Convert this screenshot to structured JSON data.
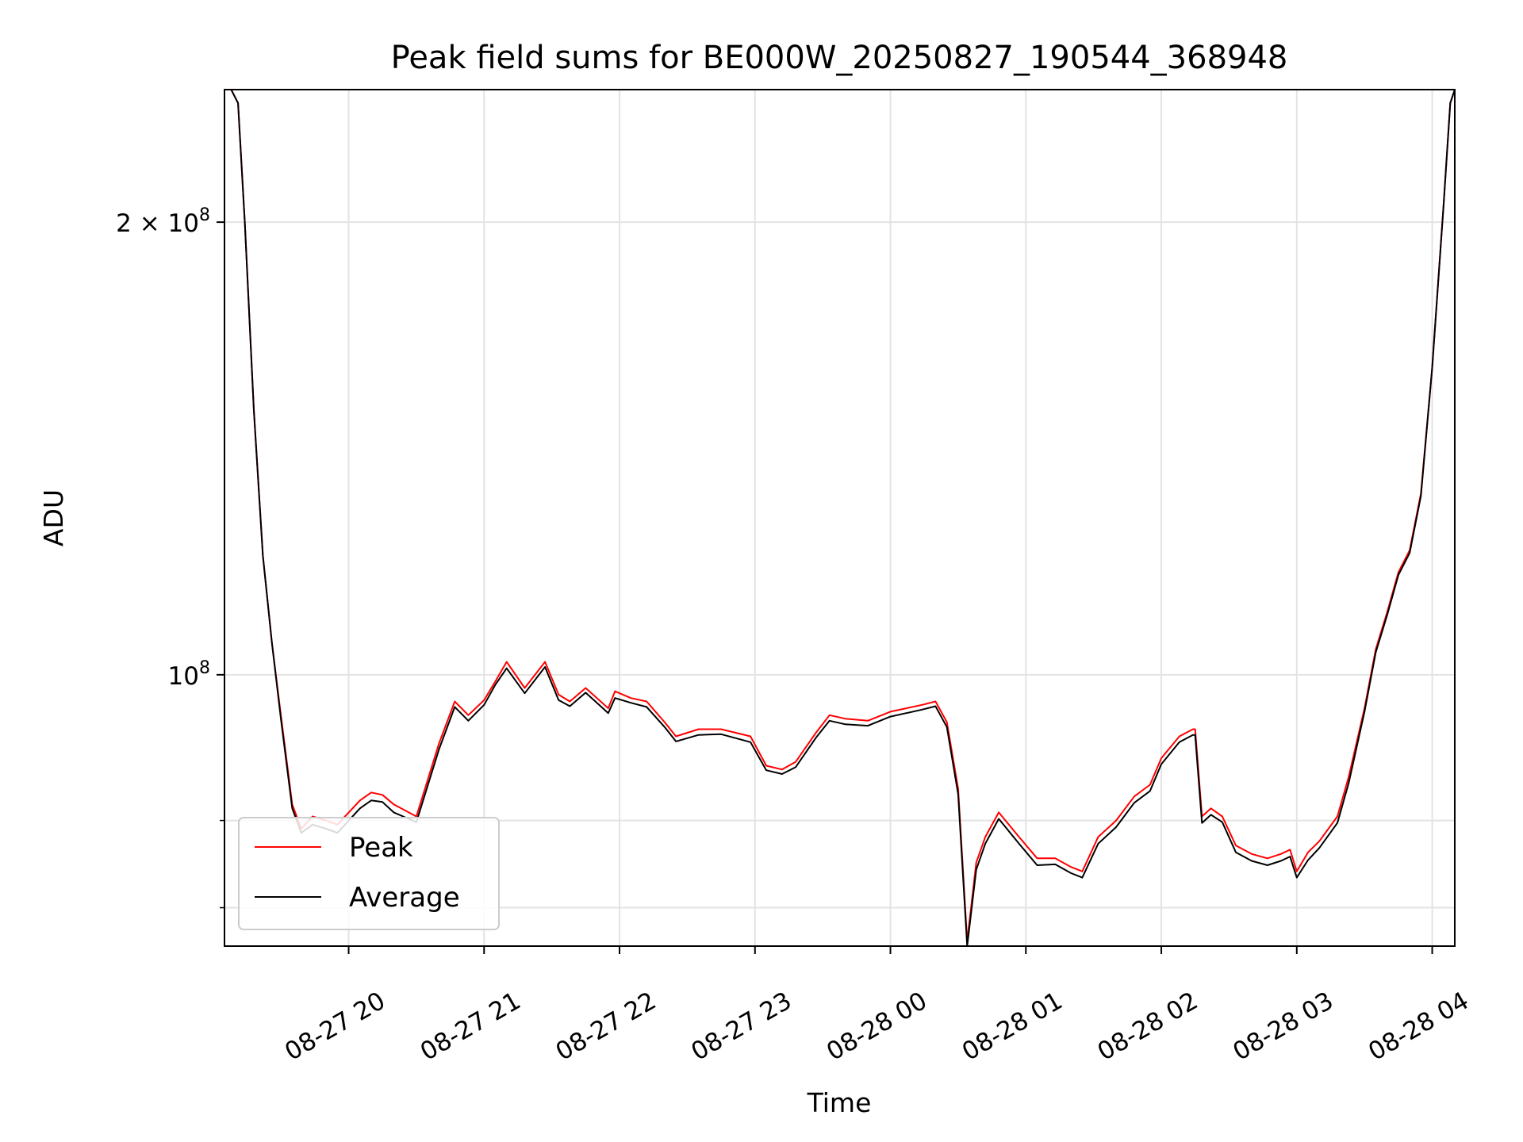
{
  "chart_data": {
    "type": "line",
    "title": "Peak field sums for BE000W_20250827_190544_368948",
    "xlabel": "Time",
    "ylabel": "ADU",
    "x_scale": "time",
    "y_scale": "log",
    "xlim": [
      "2025-08-27 19:05",
      "2025-08-28 04:10"
    ],
    "ylim": [
      66000000,
      245000000
    ],
    "x_ticks": [
      {
        "value": "2025-08-27 20:00",
        "label": "08-27 20"
      },
      {
        "value": "2025-08-27 21:00",
        "label": "08-27 21"
      },
      {
        "value": "2025-08-27 22:00",
        "label": "08-27 22"
      },
      {
        "value": "2025-08-27 23:00",
        "label": "08-27 23"
      },
      {
        "value": "2025-08-28 00:00",
        "label": "08-28 00"
      },
      {
        "value": "2025-08-28 01:00",
        "label": "08-28 01"
      },
      {
        "value": "2025-08-28 02:00",
        "label": "08-28 02"
      },
      {
        "value": "2025-08-28 03:00",
        "label": "08-28 03"
      },
      {
        "value": "2025-08-28 04:00",
        "label": "08-28 04"
      }
    ],
    "y_major_ticks": [
      {
        "value": 100000000,
        "base": "10",
        "exp": "8"
      },
      {
        "value": 200000000,
        "base": "2 × 10",
        "exp": "8"
      }
    ],
    "y_minor_ticks": [
      70000000,
      80000000
    ],
    "grid": true,
    "legend_position": "lower-left",
    "series": [
      {
        "name": "Peak",
        "color": "#ff0000",
        "x": [
          "2025-08-27 19:05",
          "2025-08-27 19:08",
          "2025-08-27 19:11",
          "2025-08-27 19:14",
          "2025-08-27 19:18",
          "2025-08-27 19:22",
          "2025-08-27 19:26",
          "2025-08-27 19:30",
          "2025-08-27 19:35",
          "2025-08-27 19:39",
          "2025-08-27 19:44",
          "2025-08-27 19:50",
          "2025-08-27 19:55",
          "2025-08-27 20:05",
          "2025-08-27 20:10",
          "2025-08-27 20:15",
          "2025-08-27 20:20",
          "2025-08-27 20:30",
          "2025-08-27 20:40",
          "2025-08-27 20:47",
          "2025-08-27 20:53",
          "2025-08-27 21:00",
          "2025-08-27 21:05",
          "2025-08-27 21:10",
          "2025-08-27 21:18",
          "2025-08-27 21:27",
          "2025-08-27 21:33",
          "2025-08-27 21:38",
          "2025-08-27 21:45",
          "2025-08-27 21:55",
          "2025-08-27 21:58",
          "2025-08-27 22:05",
          "2025-08-27 22:12",
          "2025-08-27 22:20",
          "2025-08-27 22:25",
          "2025-08-27 22:35",
          "2025-08-27 22:45",
          "2025-08-27 22:58",
          "2025-08-27 23:05",
          "2025-08-27 23:12",
          "2025-08-27 23:18",
          "2025-08-27 23:27",
          "2025-08-27 23:33",
          "2025-08-27 23:40",
          "2025-08-27 23:50",
          "2025-08-28 00:00",
          "2025-08-28 00:07",
          "2025-08-28 00:14",
          "2025-08-28 00:20",
          "2025-08-28 00:25",
          "2025-08-28 00:30",
          "2025-08-28 00:34",
          "2025-08-28 00:38",
          "2025-08-28 00:42",
          "2025-08-28 00:48",
          "2025-08-28 00:57",
          "2025-08-28 01:05",
          "2025-08-28 01:13",
          "2025-08-28 01:20",
          "2025-08-28 01:25",
          "2025-08-28 01:32",
          "2025-08-28 01:40",
          "2025-08-28 01:48",
          "2025-08-28 01:55",
          "2025-08-28 02:00",
          "2025-08-28 02:08",
          "2025-08-28 02:14",
          "2025-08-28 02:15",
          "2025-08-28 02:18",
          "2025-08-28 02:22",
          "2025-08-28 02:27",
          "2025-08-28 02:33",
          "2025-08-28 02:40",
          "2025-08-28 02:47",
          "2025-08-28 02:53",
          "2025-08-28 02:57",
          "2025-08-28 03:00",
          "2025-08-28 03:05",
          "2025-08-28 03:10",
          "2025-08-28 03:18",
          "2025-08-28 03:23",
          "2025-08-28 03:30",
          "2025-08-28 03:35",
          "2025-08-28 03:40",
          "2025-08-28 03:45",
          "2025-08-28 03:50",
          "2025-08-28 03:55",
          "2025-08-28 04:00",
          "2025-08-28 04:05",
          "2025-08-28 04:08",
          "2025-08-28 04:10"
        ],
        "values": [
          245000000,
          245000000,
          240000000,
          200000000,
          150000000,
          120000000,
          105000000,
          94000000,
          82000000,
          79000000,
          80500000,
          80000000,
          79500000,
          82500000,
          83500000,
          83200000,
          82000000,
          80500000,
          90000000,
          96000000,
          94000000,
          96200000,
          99000000,
          102000000,
          98000000,
          102000000,
          97000000,
          96000000,
          98000000,
          95000000,
          97500000,
          96500000,
          96000000,
          93000000,
          91000000,
          92000000,
          92000000,
          91000000,
          87000000,
          86500000,
          87500000,
          91500000,
          94000000,
          93500000,
          93200000,
          94500000,
          95000000,
          95500000,
          96000000,
          93000000,
          84000000,
          66500000,
          75000000,
          78000000,
          81000000,
          78000000,
          75500000,
          75500000,
          74500000,
          74000000,
          78000000,
          80000000,
          83000000,
          84500000,
          88000000,
          91000000,
          92000000,
          92000000,
          80500000,
          81500000,
          80500000,
          77000000,
          76000000,
          75500000,
          76000000,
          76500000,
          74000000,
          76200000,
          77500000,
          80500000,
          85500000,
          95000000,
          104000000,
          110000000,
          117000000,
          121000000,
          132000000,
          160000000,
          205000000,
          240000000,
          245000000
        ]
      },
      {
        "name": "Average",
        "color": "#000000",
        "x": [
          "2025-08-27 19:05",
          "2025-08-27 19:08",
          "2025-08-27 19:11",
          "2025-08-27 19:14",
          "2025-08-27 19:18",
          "2025-08-27 19:22",
          "2025-08-27 19:26",
          "2025-08-27 19:30",
          "2025-08-27 19:35",
          "2025-08-27 19:39",
          "2025-08-27 19:44",
          "2025-08-27 19:50",
          "2025-08-27 19:55",
          "2025-08-27 20:05",
          "2025-08-27 20:10",
          "2025-08-27 20:15",
          "2025-08-27 20:20",
          "2025-08-27 20:30",
          "2025-08-27 20:40",
          "2025-08-27 20:47",
          "2025-08-27 20:53",
          "2025-08-27 21:00",
          "2025-08-27 21:05",
          "2025-08-27 21:10",
          "2025-08-27 21:18",
          "2025-08-27 21:27",
          "2025-08-27 21:33",
          "2025-08-27 21:38",
          "2025-08-27 21:45",
          "2025-08-27 21:55",
          "2025-08-27 21:58",
          "2025-08-27 22:05",
          "2025-08-27 22:12",
          "2025-08-27 22:20",
          "2025-08-27 22:25",
          "2025-08-27 22:35",
          "2025-08-27 22:45",
          "2025-08-27 22:58",
          "2025-08-27 23:05",
          "2025-08-27 23:12",
          "2025-08-27 23:18",
          "2025-08-27 23:27",
          "2025-08-27 23:33",
          "2025-08-27 23:40",
          "2025-08-27 23:50",
          "2025-08-28 00:00",
          "2025-08-28 00:07",
          "2025-08-28 00:14",
          "2025-08-28 00:20",
          "2025-08-28 00:25",
          "2025-08-28 00:30",
          "2025-08-28 00:34",
          "2025-08-28 00:38",
          "2025-08-28 00:42",
          "2025-08-28 00:48",
          "2025-08-28 00:57",
          "2025-08-28 01:05",
          "2025-08-28 01:13",
          "2025-08-28 01:20",
          "2025-08-28 01:25",
          "2025-08-28 01:32",
          "2025-08-28 01:40",
          "2025-08-28 01:48",
          "2025-08-28 01:55",
          "2025-08-28 02:00",
          "2025-08-28 02:08",
          "2025-08-28 02:14",
          "2025-08-28 02:15",
          "2025-08-28 02:18",
          "2025-08-28 02:22",
          "2025-08-28 02:27",
          "2025-08-28 02:33",
          "2025-08-28 02:40",
          "2025-08-28 02:47",
          "2025-08-28 02:53",
          "2025-08-28 02:57",
          "2025-08-28 03:00",
          "2025-08-28 03:05",
          "2025-08-28 03:10",
          "2025-08-28 03:18",
          "2025-08-28 03:23",
          "2025-08-28 03:30",
          "2025-08-28 03:35",
          "2025-08-28 03:40",
          "2025-08-28 03:45",
          "2025-08-28 03:50",
          "2025-08-28 03:55",
          "2025-08-28 04:00",
          "2025-08-28 04:05",
          "2025-08-28 04:08",
          "2025-08-28 04:10"
        ],
        "values": [
          245000000,
          245000000,
          240000000,
          200000000,
          150000000,
          120000000,
          105000000,
          93500000,
          81500000,
          78500000,
          79500000,
          79000000,
          78500000,
          81500000,
          82500000,
          82300000,
          81000000,
          79800000,
          89200000,
          95200000,
          93200000,
          95500000,
          98500000,
          101000000,
          97200000,
          101200000,
          96200000,
          95300000,
          97300000,
          94300000,
          96500000,
          95800000,
          95200000,
          92300000,
          90300000,
          91200000,
          91300000,
          90200000,
          86400000,
          85900000,
          86800000,
          90800000,
          93200000,
          92700000,
          92500000,
          93800000,
          94300000,
          94800000,
          95300000,
          92300000,
          83300000,
          66000000,
          74200000,
          77200000,
          80200000,
          77200000,
          74700000,
          74800000,
          73800000,
          73300000,
          77200000,
          79200000,
          82200000,
          83700000,
          87200000,
          90200000,
          91200000,
          91200000,
          79700000,
          80700000,
          79800000,
          76200000,
          75200000,
          74700000,
          75200000,
          75700000,
          73300000,
          75300000,
          76700000,
          79700000,
          84700000,
          94500000,
          103500000,
          109500000,
          116500000,
          120500000,
          131500000,
          160000000,
          205000000,
          240000000,
          245000000
        ]
      }
    ]
  }
}
